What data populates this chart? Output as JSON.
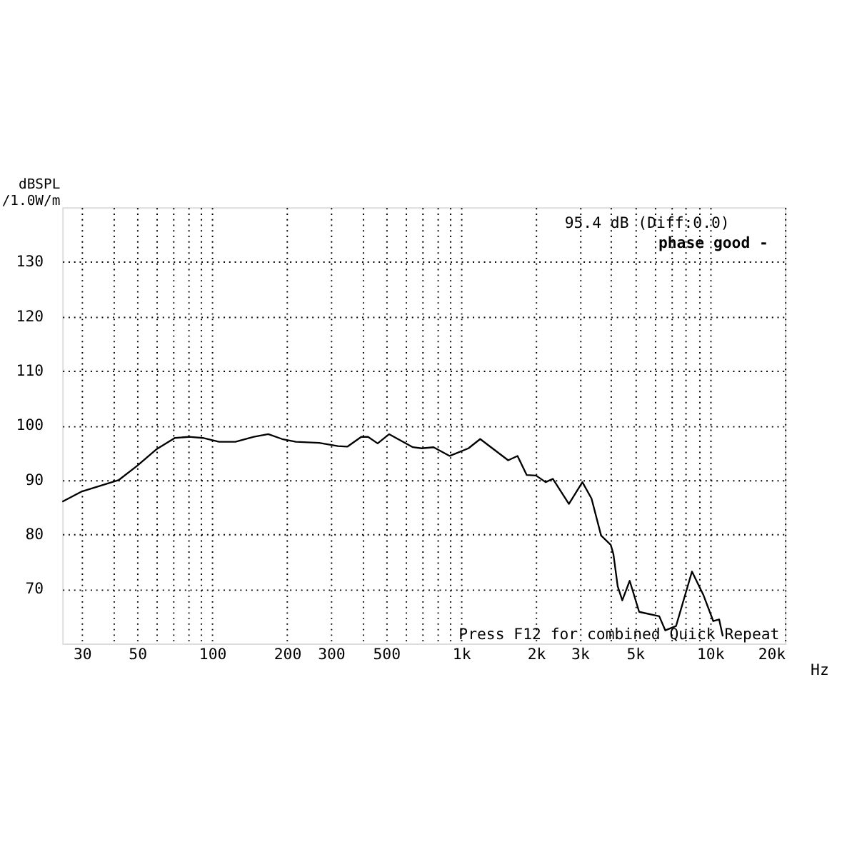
{
  "chart_data": {
    "type": "line",
    "ylabel": "dBSPL\n/1.0W/m",
    "annotations": [
      "95.4 dB (Diff:0.0)",
      "phase  good -",
      "Press F12 for combined Quick Repeat"
    ],
    "x": [
      25,
      30,
      42.2,
      50,
      59.6,
      70.8,
      80.6,
      91.7,
      106.6,
      124,
      147,
      168,
      191,
      217,
      269,
      320,
      349,
      397,
      423,
      462,
      514,
      640,
      694,
      775,
      900,
      1070,
      1193,
      1545,
      1685,
      1835,
      2000,
      2185,
      2335,
      2710,
      3070,
      3340,
      3650,
      3990,
      4090,
      4255,
      4440,
      4755,
      5190,
      6250,
      6610,
      7300,
      8460,
      9420,
      10300,
      10880,
      11250
    ],
    "series": [
      {
        "color": "#000000",
        "values": [
          86.0,
          87.9,
          90.0,
          92.6,
          95.6,
          97.7,
          97.9,
          97.7,
          97.0,
          97.0,
          97.9,
          98.4,
          97.5,
          97.0,
          96.8,
          96.2,
          96.1,
          97.9,
          97.9,
          96.7,
          98.4,
          96.0,
          95.8,
          96.0,
          94.4,
          95.8,
          97.5,
          93.6,
          94.4,
          90.9,
          90.8,
          89.6,
          90.2,
          85.6,
          89.6,
          86.6,
          79.8,
          78.1,
          76.4,
          70.5,
          67.9,
          71.5,
          65.8,
          65.0,
          62.4,
          63.2,
          73.2,
          68.8,
          64.1,
          64.4,
          61.3
        ]
      }
    ],
    "log": "x",
    "grid": true,
    "line_style": "solid",
    "marker": "none",
    "xlim": [
      25,
      20000
    ],
    "ylim": [
      60,
      140
    ],
    "xticks": [
      30,
      {
        "value": 40,
        "label": null
      },
      50,
      {
        "value": 60,
        "label": null
      },
      {
        "value": 70,
        "label": null
      },
      {
        "value": 80,
        "label": null
      },
      {
        "value": 90,
        "label": null
      },
      100,
      200,
      300,
      {
        "value": 400,
        "label": null
      },
      500,
      {
        "value": 600,
        "label": null
      },
      {
        "value": 700,
        "label": null
      },
      {
        "value": 800,
        "label": null
      },
      {
        "value": 900,
        "label": null
      },
      {
        "value": 1000,
        "label": "1k"
      },
      {
        "value": 2000,
        "label": "2k"
      },
      {
        "value": 3000,
        "label": "3k"
      },
      {
        "value": 4000,
        "label": null
      },
      {
        "value": 5000,
        "label": "5k"
      },
      {
        "value": 6000,
        "label": null
      },
      {
        "value": 7000,
        "label": null
      },
      {
        "value": 8000,
        "label": null
      },
      {
        "value": 9000,
        "label": null
      },
      {
        "value": 10000,
        "label": "10k"
      },
      {
        "value": 20000,
        "label": "20k"
      }
    ],
    "xlabel": "Hz",
    "yticks": [
      70,
      80,
      90,
      100,
      110,
      120,
      130
    ]
  }
}
